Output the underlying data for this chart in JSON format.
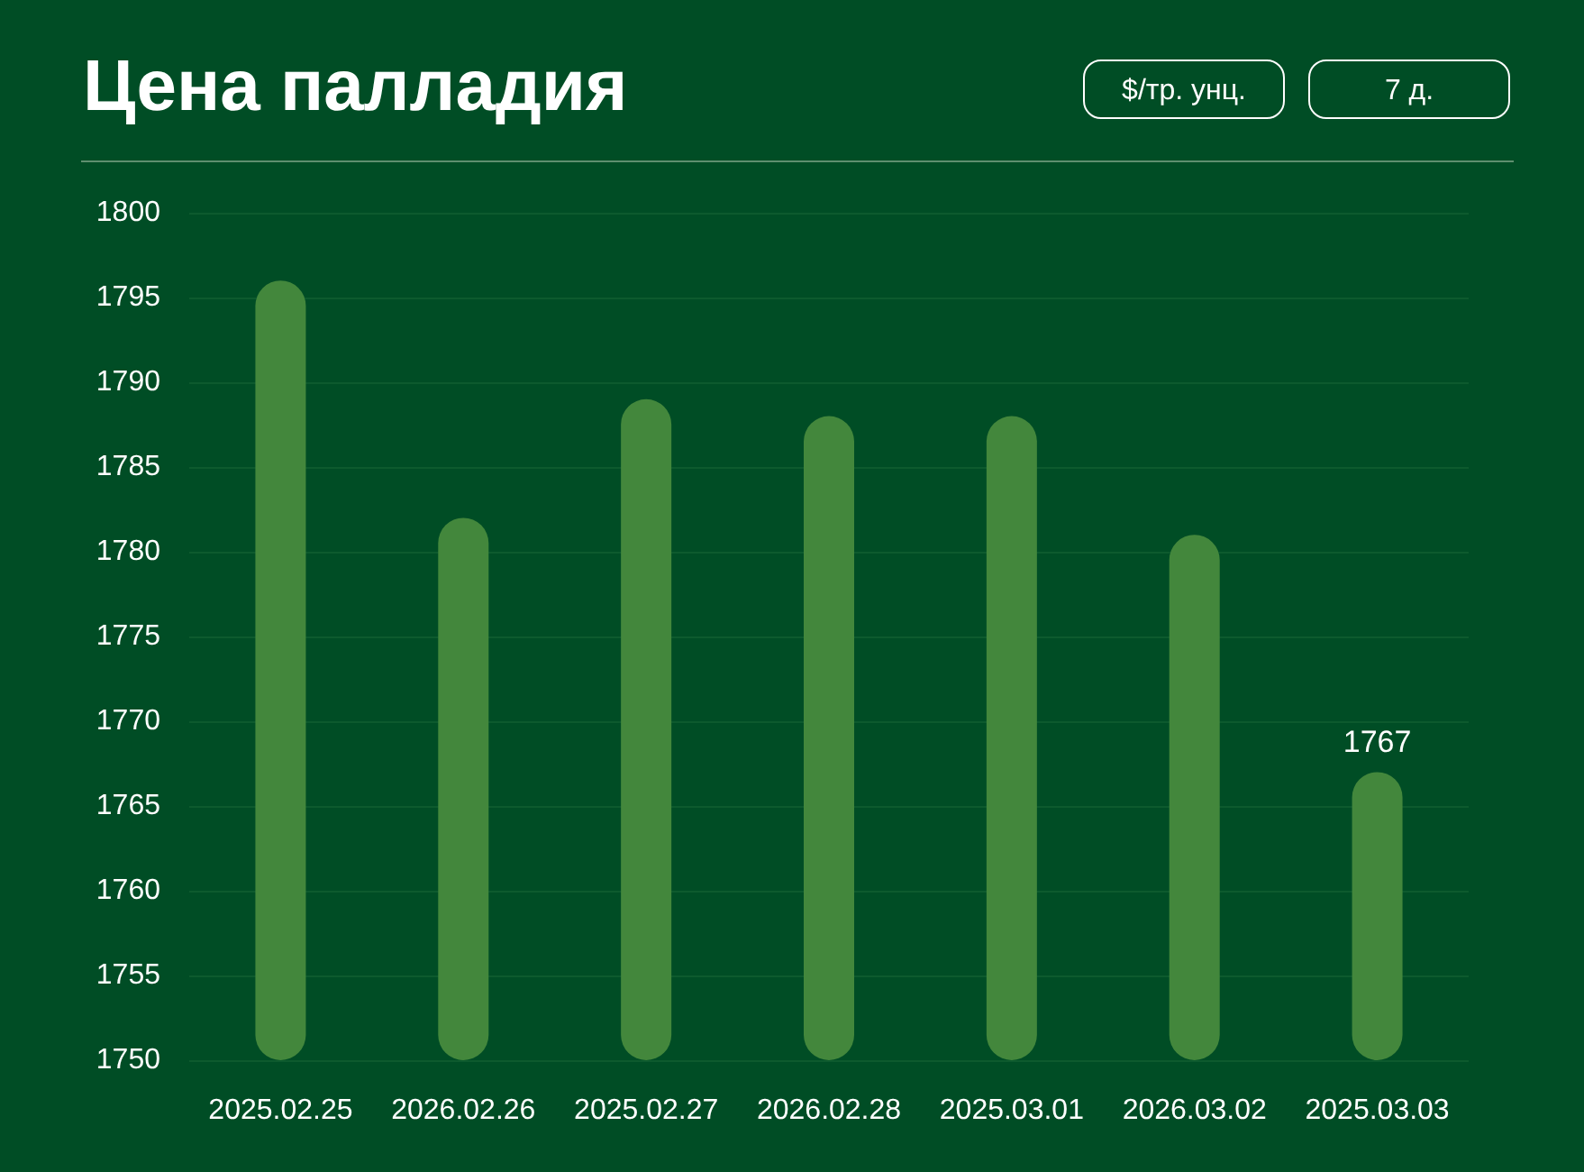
{
  "chart_data": {
    "type": "bar",
    "title": "Цена палладия",
    "annotations": [
      "$/тр. унц.",
      "7 д."
    ],
    "categories": [
      "2025.02.25",
      "2026.02.26",
      "2025.02.27",
      "2026.02.28",
      "2025.03.01",
      "2026.03.02",
      "2025.03.03"
    ],
    "values": [
      1796,
      1782,
      1789,
      1788,
      1788,
      1781,
      1767
    ],
    "value_labels": [
      null,
      null,
      null,
      null,
      null,
      null,
      "1767"
    ],
    "color": "#43873c",
    "ylim": [
      1750,
      1800
    ],
    "yticks": [
      1750,
      1755,
      1760,
      1765,
      1770,
      1775,
      1780,
      1785,
      1790,
      1795,
      1800
    ],
    "grid": "y"
  }
}
